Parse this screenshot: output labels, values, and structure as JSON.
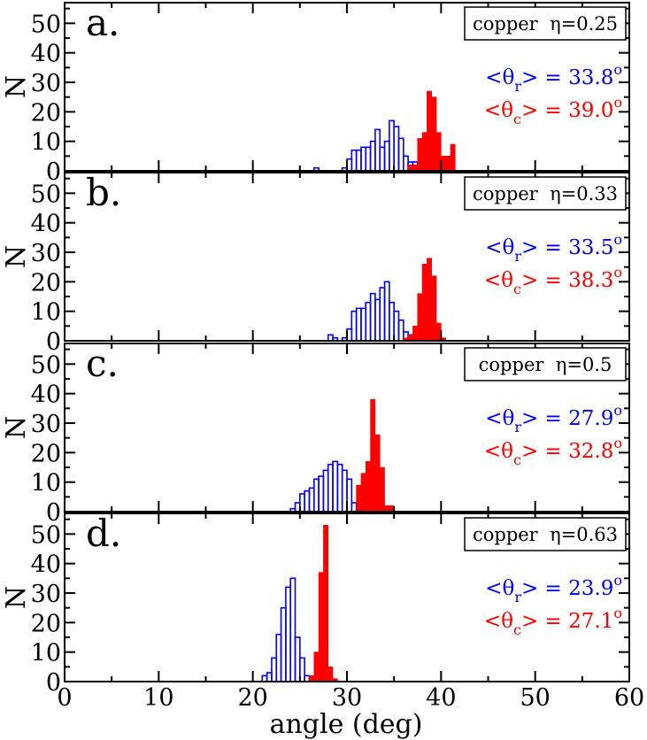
{
  "figure": {
    "xlabel": "angle (deg)",
    "ylabel": "N",
    "xlim": [
      0,
      60
    ],
    "x_ticks": [
      0,
      10,
      20,
      30,
      40,
      50,
      60
    ],
    "ylim": [
      0,
      57
    ],
    "y_ticks": [
      0,
      10,
      20,
      30,
      40,
      50
    ],
    "colors": {
      "theta_r": "#0000ff",
      "theta_c": "#ff0000",
      "axis": "#000000"
    }
  },
  "chart_data": [
    {
      "type": "bar",
      "panel_label": "a.",
      "legend": "copper  η=0.25",
      "annotations": [
        {
          "prefix": "<θ",
          "sub": "r",
          "suffix": "> = 33.8",
          "sup": "o",
          "color": "#0000ff"
        },
        {
          "prefix": "<θ",
          "sub": "c",
          "suffix": "> = 39.0",
          "sup": "o",
          "color": "#ff0000"
        }
      ],
      "bin_width": 0.5,
      "series": [
        {
          "style": "outline",
          "color": "#0000ff",
          "x": [
            26.5,
            29.5,
            30.0,
            30.5,
            31.0,
            31.5,
            32.0,
            32.5,
            33.0,
            33.5,
            34.0,
            34.5,
            35.0,
            35.5,
            36.0,
            36.5,
            37.0,
            37.5,
            38.0,
            38.5
          ],
          "y": [
            1,
            1,
            4,
            7,
            7,
            8,
            8,
            10,
            14,
            8,
            10,
            17,
            15,
            11,
            5,
            3,
            3,
            1,
            1,
            1
          ]
        },
        {
          "style": "filled",
          "color": "#ff0000",
          "x": [
            36.5,
            37.0,
            37.5,
            38.0,
            38.5,
            39.0,
            39.5,
            40.0,
            40.5,
            41.0
          ],
          "y": [
            2,
            2,
            11,
            13,
            27,
            25,
            13,
            5,
            5,
            9
          ]
        }
      ]
    },
    {
      "type": "bar",
      "panel_label": "b.",
      "legend": "copper  η=0.33",
      "annotations": [
        {
          "prefix": "<θ",
          "sub": "r",
          "suffix": "> = 33.5",
          "sup": "o",
          "color": "#0000ff"
        },
        {
          "prefix": "<θ",
          "sub": "c",
          "suffix": "> = 38.3",
          "sup": "o",
          "color": "#ff0000"
        }
      ],
      "bin_width": 0.5,
      "series": [
        {
          "style": "outline",
          "color": "#0000ff",
          "x": [
            28.0,
            28.5,
            29.5,
            30.0,
            30.5,
            31.0,
            31.5,
            32.0,
            32.5,
            33.0,
            33.5,
            34.0,
            34.5,
            35.0,
            35.5,
            36.0,
            36.5
          ],
          "y": [
            2,
            1,
            1,
            4,
            10,
            11,
            11,
            13,
            16,
            14,
            18,
            20,
            13,
            10,
            7,
            3,
            2
          ]
        },
        {
          "style": "filled",
          "color": "#ff0000",
          "x": [
            36.0,
            36.5,
            37.0,
            37.5,
            38.0,
            38.5,
            39.0,
            39.5,
            40.0
          ],
          "y": [
            1,
            2,
            5,
            16,
            26,
            28,
            22,
            6,
            1
          ]
        }
      ]
    },
    {
      "type": "bar",
      "panel_label": "c.",
      "legend": "copper  η=0.5",
      "annotations": [
        {
          "prefix": "<θ",
          "sub": "r",
          "suffix": "> = 27.9",
          "sup": "o",
          "color": "#0000ff"
        },
        {
          "prefix": "<θ",
          "sub": "c",
          "suffix": "> = 32.8",
          "sup": "o",
          "color": "#ff0000"
        }
      ],
      "bin_width": 0.5,
      "series": [
        {
          "style": "outline",
          "color": "#0000ff",
          "x": [
            24.0,
            24.5,
            25.0,
            25.5,
            26.0,
            26.5,
            27.0,
            27.5,
            28.0,
            28.5,
            29.0,
            29.5,
            30.0,
            30.5
          ],
          "y": [
            1,
            3,
            6,
            7,
            8,
            11,
            12,
            14,
            16,
            17,
            16,
            14,
            11,
            3
          ]
        },
        {
          "style": "filled",
          "color": "#ff0000",
          "x": [
            31.0,
            31.5,
            32.0,
            32.5,
            33.0,
            33.5,
            34.0,
            34.5
          ],
          "y": [
            9,
            13,
            17,
            38,
            26,
            15,
            2,
            2
          ]
        }
      ]
    },
    {
      "type": "bar",
      "panel_label": "d.",
      "legend": "copper  η=0.63",
      "annotations": [
        {
          "prefix": "<θ",
          "sub": "r",
          "suffix": "> = 23.9",
          "sup": "o",
          "color": "#0000ff"
        },
        {
          "prefix": "<θ",
          "sub": "c",
          "suffix": "> = 27.1",
          "sup": "o",
          "color": "#ff0000"
        }
      ],
      "bin_width": 0.5,
      "series": [
        {
          "style": "outline",
          "color": "#0000ff",
          "x": [
            21.0,
            21.5,
            22.0,
            22.5,
            23.0,
            23.5,
            24.0,
            24.5,
            25.0,
            25.5,
            26.0
          ],
          "y": [
            2,
            3,
            8,
            16,
            25,
            32,
            35,
            15,
            8,
            2,
            1
          ]
        },
        {
          "style": "filled",
          "color": "#ff0000",
          "x": [
            26.0,
            26.5,
            27.0,
            27.5,
            28.0,
            28.5
          ],
          "y": [
            2,
            10,
            37,
            53,
            5,
            1
          ]
        }
      ]
    }
  ]
}
